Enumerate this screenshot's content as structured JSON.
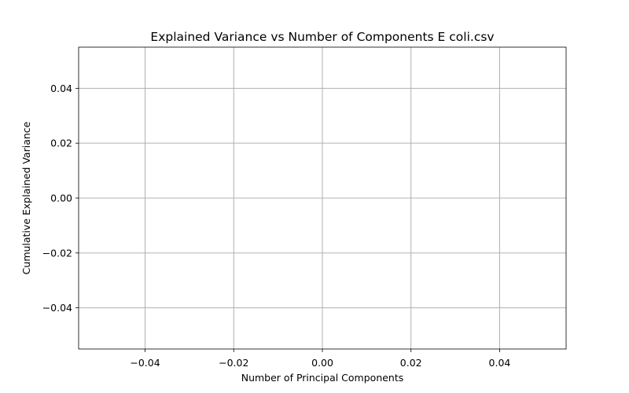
{
  "chart_data": {
    "type": "line",
    "title": "Explained Variance vs Number of Components E coli.csv",
    "xlabel": "Number of Principal Components",
    "ylabel": "Cumulative Explained Variance",
    "x": [],
    "series": [],
    "xlim": [
      -0.055,
      0.055
    ],
    "ylim": [
      -0.055,
      0.055
    ],
    "x_ticks": [
      -0.04,
      -0.02,
      0.0,
      0.02,
      0.04
    ],
    "y_ticks": [
      -0.04,
      -0.02,
      0.0,
      0.02,
      0.04
    ],
    "x_tick_labels": [
      "−0.04",
      "−0.02",
      "0.00",
      "0.02",
      "0.04"
    ],
    "y_tick_labels": [
      "−0.04",
      "−0.02",
      "0.00",
      "0.02",
      "0.04"
    ],
    "grid": true,
    "legend": "none"
  },
  "colors": {
    "background": "#ffffff",
    "grid": "#b0b0b0",
    "axes": "#000000"
  }
}
